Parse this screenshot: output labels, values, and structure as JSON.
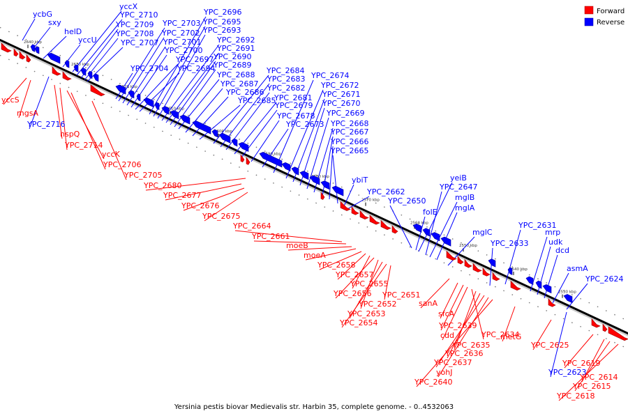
{
  "legend": {
    "forward_label": "Forward",
    "reverse_label": "Reverse",
    "forward_color": "#ff0000",
    "reverse_color": "#0000ff"
  },
  "caption": "Yersinia pestis biovar Medievalis str. Harbin 35, complete genome. - 0..4532063",
  "ticks": [
    "2640 kbp",
    "2630 kbp",
    "2620 kbp",
    "2610 kbp",
    "2600 kbp",
    "2590 kbp",
    "2580 kbp",
    "2570 kbp",
    "2560 kbp",
    "2550 kbp",
    "2540 kbp",
    "2530 kbp"
  ],
  "reverse_genes": [
    "ycbG",
    "sxy",
    "helD",
    "yccU",
    "yccX",
    "YPC_2710",
    "YPC_2709",
    "YPC_2708",
    "YPC_2707",
    "YPC_2703",
    "YPC_2702",
    "YPC_2701",
    "YPC_2700",
    "YPC_2697",
    "YPC_2704",
    "YPC_2694",
    "YPC_2696",
    "YPC_2695",
    "YPC_2693",
    "YPC_2692",
    "YPC_2691",
    "YPC_2690",
    "YPC_2689",
    "YPC_2688",
    "YPC_2687",
    "YPC_2686",
    "YPC_2685",
    "YPC_2684",
    "YPC_2683",
    "YPC_2682",
    "YPC_2681",
    "YPC_2679",
    "YPC_2678",
    "YPC_2673",
    "YPC_2674",
    "YPC_2672",
    "YPC_2671",
    "YPC_2670",
    "YPC_2669",
    "YPC_2668",
    "YPC_2667",
    "YPC_2666",
    "YPC_2665",
    "ybiT",
    "YPC_2662",
    "YPC_2650",
    "folE",
    "yeiB",
    "YPC_2647",
    "mglB",
    "mglA",
    "mglC",
    "YPC_2633",
    "YPC_2631",
    "mrp",
    "udk",
    "dcd",
    "asmA",
    "YPC_2624",
    "YPC_2716",
    "YPC_2623"
  ],
  "forward_genes": [
    "yccS",
    "mgsA",
    "hspQ",
    "YPC_2714",
    "yccK",
    "YPC_2706",
    "YPC_2705",
    "YPC_2680",
    "YPC_2677",
    "YPC_2676",
    "YPC_2675",
    "YPC_2664",
    "YPC_2661",
    "moeB",
    "moeA",
    "YPC_2658",
    "YPC_2657",
    "YPC_2655",
    "YPC_2656",
    "YPC_2652",
    "YPC_2653",
    "YPC_2654",
    "YPC_2651",
    "sanA",
    "sfcA",
    "YPC_2639",
    "cdd",
    "YPC_2634",
    "YPC_2635",
    "YPC_2636",
    "YPC_2637",
    "yohJ",
    "YPC_2640",
    "metG",
    "YPC_2625",
    "YPC_2619",
    "YPC_2614",
    "YPC_2615",
    "YPC_2618"
  ]
}
